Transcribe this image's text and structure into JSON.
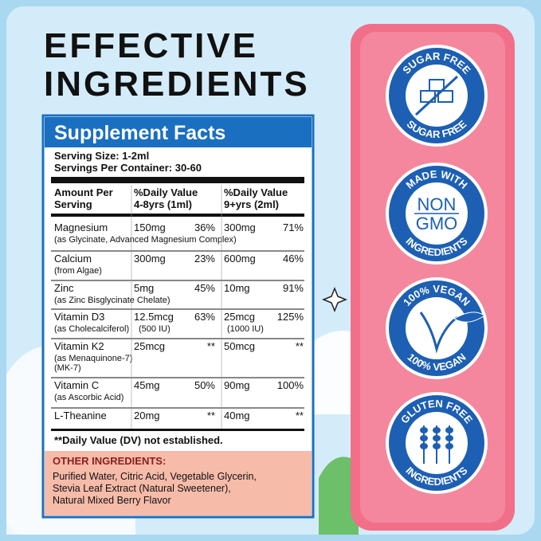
{
  "title": {
    "lines": [
      "EFFECTIVE",
      "INGREDIENTS"
    ]
  },
  "facts": {
    "header": "Supplement Facts",
    "serving_size": "Serving Size: 1-2ml",
    "servings_per_container": "Servings Per Container: 30-60",
    "columns": [
      [
        "Amount Per",
        "Serving"
      ],
      [
        "%Daily Value",
        "4-8yrs (1ml)"
      ],
      [
        "%Daily Value",
        "9+yrs (2ml)"
      ]
    ],
    "rows": [
      {
        "name": "Magnesium",
        "notes": [
          "(as Glycinate, Advanced Magnesium Complex)"
        ],
        "amount_1": "150mg",
        "dv_1": "36%",
        "amount_2": "300mg",
        "dv_2": "71%"
      },
      {
        "name": "Calcium",
        "notes": [
          "(from Algae)"
        ],
        "amount_1": "300mg",
        "dv_1": "23%",
        "amount_2": "600mg",
        "dv_2": "46%"
      },
      {
        "name": "Zinc",
        "notes": [
          "(as Zinc Bisglycinate Chelate)"
        ],
        "amount_1": "5mg",
        "dv_1": "45%",
        "amount_2": "10mg",
        "dv_2": "91%"
      },
      {
        "name": "Vitamin D3",
        "notes": [
          "(as Cholecalciferol)"
        ],
        "amount_1": "12.5mcg",
        "amount_1_note": "(500 IU)",
        "dv_1": "63%",
        "amount_2": "25mcg",
        "amount_2_note": "(1000 IU)",
        "dv_2": "125%"
      },
      {
        "name": "Vitamin K2",
        "notes": [
          "(as Menaquinone-7)",
          "(MK-7)"
        ],
        "amount_1": "25mcg",
        "dv_1": "**",
        "amount_2": "50mcg",
        "dv_2": "**"
      },
      {
        "name": "Vitamin C",
        "notes": [
          "(as Ascorbic Acid)"
        ],
        "amount_1": "45mg",
        "dv_1": "50%",
        "amount_2": "90mg",
        "dv_2": "100%"
      },
      {
        "name": "L-Theanine",
        "amount_1": "20mg",
        "dv_1": "**",
        "amount_2": "40mg",
        "dv_2": "**"
      }
    ],
    "footnote": "**Daily Value (DV) not established.",
    "other_ingredients": {
      "heading": "OTHER INGREDIENTS:",
      "lines": [
        "Purified Water, Citric Acid, Vegetable Glycerin,",
        "Stevia Leaf Extract (Natural Sweetener),",
        "Natural Mixed Berry Flavor"
      ]
    }
  },
  "badges": [
    {
      "top": "SUGAR FREE",
      "bottom": "SUGAR FREE"
    },
    {
      "top": "MADE WITH",
      "center": [
        "NON",
        "GMO"
      ],
      "bottom": "INGREDIENTS"
    },
    {
      "top": "100% VEGAN",
      "bottom": "100% VEGAN"
    },
    {
      "top": "GLUTEN FREE",
      "bottom": "INGREDIENTS"
    }
  ]
}
